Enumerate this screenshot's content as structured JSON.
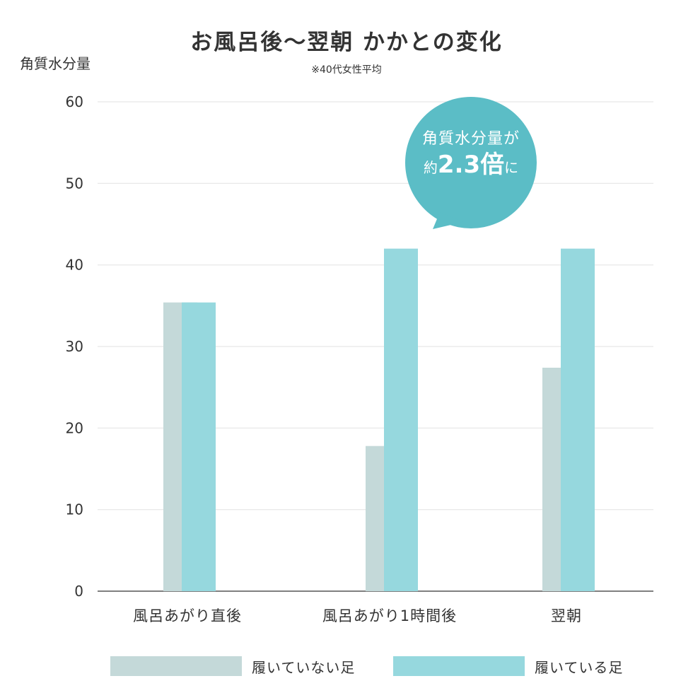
{
  "title": "お風呂後〜翌朝 かかとの変化",
  "subtitle": "※40代女性平均",
  "callout": {
    "line1": "角質水分量が",
    "prefix": "約",
    "value": "2.3倍",
    "suffix": "に",
    "color": "#5bbdc6"
  },
  "chart_data": {
    "type": "bar",
    "title": "お風呂後〜翌朝 かかとの変化",
    "subtitle": "※40代女性平均",
    "ylabel": "角質水分量",
    "xlabel": "",
    "ylim": [
      0,
      60
    ],
    "yticks": [
      "0",
      "10",
      "20",
      "30",
      "40",
      "50",
      "60"
    ],
    "grid": true,
    "legend_position": "bottom",
    "categories": [
      "風呂あがり直後",
      "風呂あがり1時間後",
      "翌朝"
    ],
    "series": [
      {
        "name": "履いていない足",
        "values": [
          35.4,
          17.8,
          27.4
        ],
        "color": "#c4d9d9"
      },
      {
        "name": "履いている足",
        "values": [
          35.4,
          42,
          42
        ],
        "color": "#96d8de"
      }
    ]
  }
}
